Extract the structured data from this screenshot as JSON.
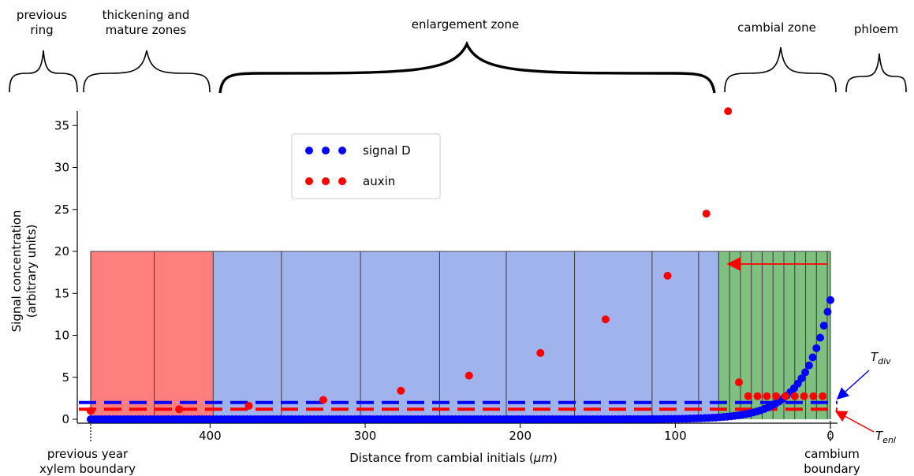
{
  "zones": [
    {
      "label": "previous\nring"
    },
    {
      "label": "thickening and\nmature zones"
    },
    {
      "label": "enlargement zone"
    },
    {
      "label": "cambial zone"
    },
    {
      "label": "phloem"
    }
  ],
  "chart_data": {
    "type": "scatter",
    "xlabel": "Distance from cambial initials (μm)",
    "ylabel": "Signal concentration\n(arbitrary units)",
    "xlim": [
      478,
      -4
    ],
    "ylim": [
      0,
      37
    ],
    "x_ticks": [
      400,
      300,
      200,
      100,
      0
    ],
    "y_ticks": [
      0,
      5,
      10,
      15,
      20,
      25,
      30,
      35
    ],
    "x_axis_reversed": true,
    "legend": {
      "placement": "upper-center",
      "entries": [
        "signal D",
        "auxin"
      ]
    },
    "colors": {
      "signal_D": "#0000ff",
      "auxin": "#ff0000",
      "mature_zone": "#ff7f7f",
      "enlargement_zone": "#a0b3ec",
      "cambial_zone": "#7fbf7f"
    },
    "series": [
      {
        "name": "signal D",
        "color": "#0000ff",
        "curve": "exponential",
        "x_range": [
          477,
          0
        ],
        "y_at_0": 14.2,
        "decay_length_um": 17.4,
        "point_spacing_um": 2.4
      },
      {
        "name": "auxin",
        "color": "#ff0000",
        "x": [
          477,
          420,
          375,
          327,
          277,
          233,
          187,
          145,
          105,
          80,
          66,
          59,
          53,
          47,
          41,
          35,
          29,
          23,
          17,
          11,
          5
        ],
        "y": [
          1.0,
          1.2,
          1.6,
          2.3,
          3.4,
          5.2,
          7.9,
          11.9,
          17.1,
          24.5,
          36.7,
          4.4,
          2.75,
          2.75,
          2.75,
          2.75,
          2.75,
          2.75,
          2.75,
          2.75,
          2.75
        ]
      }
    ],
    "thresholds": [
      {
        "name": "T_div",
        "value": 2.0,
        "color": "#0000ff",
        "label_main": "T",
        "label_sub": "div"
      },
      {
        "name": "T_enl",
        "value": 1.2,
        "color": "#ff0000",
        "label_main": "T",
        "label_sub": "enl"
      }
    ],
    "cell_boundaries": [
      477,
      436,
      398,
      354,
      303,
      252,
      209,
      165,
      115,
      85,
      72
    ],
    "cambial_cell_boundaries": [
      72,
      65,
      58,
      51,
      44,
      37,
      30,
      23,
      16,
      9,
      2,
      0
    ],
    "zone_extents": {
      "mature": [
        477,
        398
      ],
      "enlargement": [
        398,
        72
      ],
      "cambial": [
        72,
        0
      ],
      "height": 20
    },
    "markers": [
      {
        "x": 477,
        "label": "previous year\nxylem boundary"
      },
      {
        "x": 0,
        "label": "cambium\nboundary"
      }
    ],
    "arrow": {
      "from_x": 2,
      "to_x": 66,
      "y": 18.5,
      "color": "#ff0000"
    }
  }
}
